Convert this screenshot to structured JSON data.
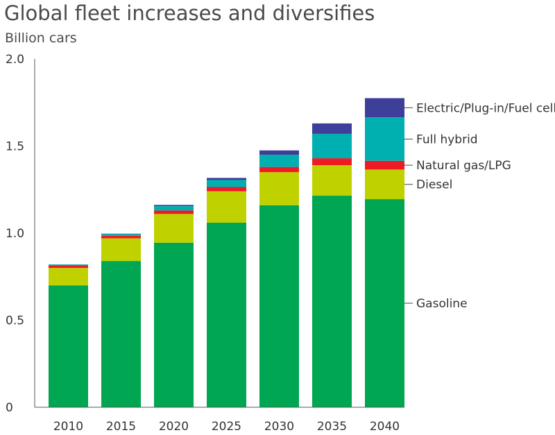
{
  "header": {
    "title": "Global fleet increases and diversifies",
    "subtitle": "Billion cars"
  },
  "chart_data": {
    "type": "bar",
    "stacked": true,
    "title": "Global fleet increases and diversifies",
    "ylabel": "Billion cars",
    "ylim": [
      0,
      2.0
    ],
    "yticks": [
      0,
      0.5,
      1.0,
      1.5,
      2.0
    ],
    "ytick_labels": [
      "0",
      "0.5",
      "1.0",
      "1.5",
      "2.0"
    ],
    "categories": [
      "2010",
      "2015",
      "2020",
      "2025",
      "2030",
      "2035",
      "2040"
    ],
    "legend_placement": "right",
    "series": [
      {
        "name": "Gasoline",
        "color": "#00a651",
        "values": [
          0.7,
          0.84,
          0.945,
          1.06,
          1.16,
          1.215,
          1.195
        ]
      },
      {
        "name": "Diesel",
        "color": "#bfd200",
        "values": [
          0.1,
          0.13,
          0.165,
          0.18,
          0.19,
          0.175,
          0.17
        ]
      },
      {
        "name": "Natural gas/LPG",
        "color": "#ed1c24",
        "values": [
          0.015,
          0.015,
          0.02,
          0.025,
          0.03,
          0.04,
          0.05
        ]
      },
      {
        "name": "Full hybrid",
        "color": "#00b0b0",
        "values": [
          0.005,
          0.01,
          0.025,
          0.04,
          0.07,
          0.14,
          0.25
        ]
      },
      {
        "name": "Electric/Plug-in/Fuel cell",
        "color": "#3d3f98",
        "values": [
          0.0,
          0.002,
          0.007,
          0.012,
          0.025,
          0.06,
          0.11
        ]
      }
    ]
  }
}
